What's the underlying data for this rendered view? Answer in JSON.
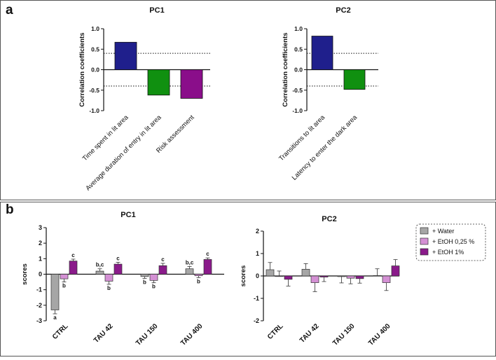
{
  "panel_a": {
    "label": "a"
  },
  "panel_b": {
    "label": "b"
  },
  "colors": {
    "navy": "#1f1f8c",
    "green": "#109010",
    "purple_a": "#8a0e8a",
    "water": "#a6a6a6",
    "etoh025": "#d490d4",
    "etoh1": "#8a1a8a"
  },
  "chart_data": [
    {
      "id": "pc1a",
      "type": "bar",
      "title": "PC1",
      "ylabel": "Correlation coefficients",
      "ylim": [
        -1.0,
        1.0
      ],
      "yticks": [
        "1.0",
        "0.5",
        "0.0",
        "-0.5",
        "-1.0"
      ],
      "thresholds": [
        0.4,
        -0.4
      ],
      "categories": [
        "Time spent in lit area",
        "Average duration of entry in lit area",
        "Risk assessment"
      ],
      "values": [
        0.67,
        -0.62,
        -0.7
      ],
      "bar_colors": [
        "navy",
        "green",
        "purple_a"
      ]
    },
    {
      "id": "pc2a",
      "type": "bar",
      "title": "PC2",
      "ylabel": "Correlation coefficients",
      "ylim": [
        -1.0,
        1.0
      ],
      "yticks": [
        "1.0",
        "0.5",
        "0.0",
        "-0.5",
        "-1.0"
      ],
      "thresholds": [
        0.4,
        -0.4
      ],
      "categories": [
        "Transitions to lit area",
        "Latency to enter the dark area"
      ],
      "values": [
        0.82,
        -0.48
      ],
      "bar_colors": [
        "navy",
        "green"
      ]
    },
    {
      "id": "pc1b",
      "type": "bar",
      "title": "PC1",
      "ylabel": "scores",
      "ylim": [
        -3,
        3
      ],
      "yticks": [
        "3",
        "2",
        "1",
        "0",
        "-1",
        "-2",
        "-3"
      ],
      "categories": [
        "CTRL",
        "TAU 42",
        "TAU 150",
        "TAU 400"
      ],
      "series": [
        {
          "name": "+ Water",
          "color": "water",
          "values": [
            -2.3,
            0.2,
            -0.15,
            0.35
          ],
          "errors": [
            0.25,
            0.15,
            0.12,
            0.15
          ],
          "letters": [
            "a",
            "b,c",
            "b",
            "b,c"
          ]
        },
        {
          "name": "+ EtOH 0,25 %",
          "color": "etoh025",
          "values": [
            -0.3,
            -0.45,
            -0.4,
            -0.1
          ],
          "errors": [
            0.2,
            0.2,
            0.15,
            0.12
          ],
          "letters": [
            "b",
            "b",
            "b",
            "b"
          ]
        },
        {
          "name": "+ EtOH 1%",
          "color": "etoh1",
          "values": [
            0.85,
            0.65,
            0.55,
            0.95
          ],
          "errors": [
            0.12,
            0.12,
            0.15,
            0.1
          ],
          "letters": [
            "c",
            "c",
            "c",
            "c"
          ]
        }
      ]
    },
    {
      "id": "pc2b",
      "type": "bar",
      "title": "PC2",
      "ylabel": "scores",
      "ylim": [
        -2,
        2
      ],
      "yticks": [
        "2",
        "1",
        "0",
        "-1",
        "-2"
      ],
      "categories": [
        "CTRL",
        "TAU 42",
        "TAU 150",
        "TAU 400"
      ],
      "legend": "top-right",
      "series": [
        {
          "name": "+ Water",
          "color": "water",
          "values": [
            0.28,
            0.3,
            -0.03,
            0.02
          ],
          "errors": [
            0.32,
            0.25,
            0.28,
            0.3
          ]
        },
        {
          "name": "+ EtOH 0,25 %",
          "color": "etoh025",
          "values": [
            0.0,
            -0.3,
            -0.1,
            -0.3
          ],
          "errors": [
            0.22,
            0.4,
            0.25,
            0.35
          ]
        },
        {
          "name": "+ EtOH 1%",
          "color": "etoh1",
          "values": [
            -0.15,
            -0.05,
            -0.12,
            0.45
          ],
          "errors": [
            0.3,
            0.2,
            0.2,
            0.28
          ]
        }
      ]
    }
  ]
}
